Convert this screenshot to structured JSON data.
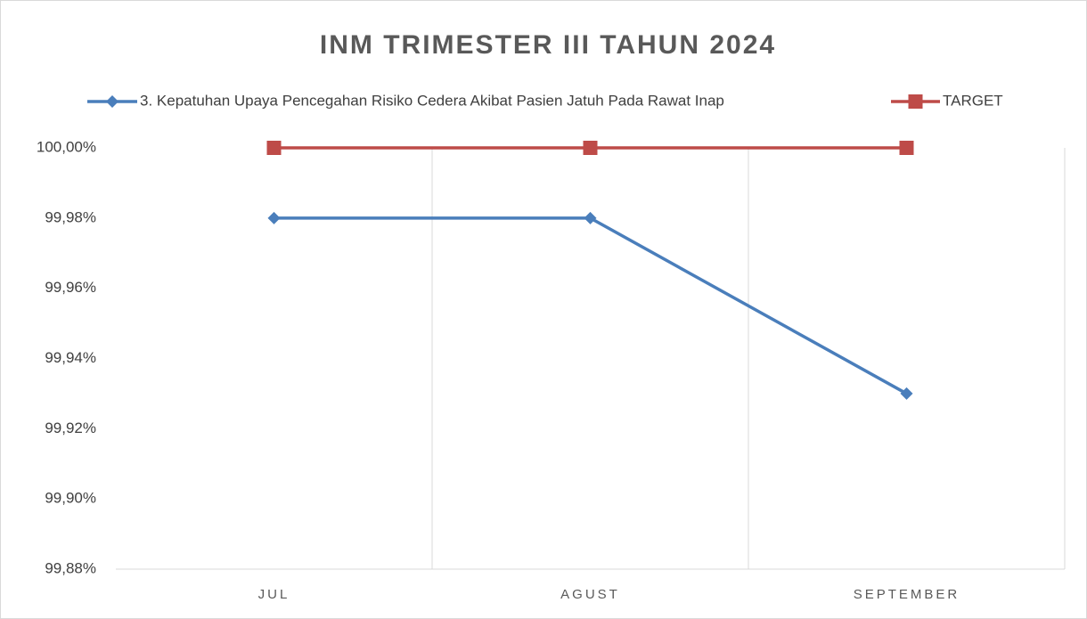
{
  "chart_data": {
    "type": "line",
    "title": "INM TRIMESTER III TAHUN 2024",
    "categories": [
      "JUL",
      "AGUST",
      "SEPTEMBER"
    ],
    "series": [
      {
        "name": "3. Kepatuhan Upaya Pencegahan Risiko Cedera Akibat Pasien Jatuh Pada Rawat Inap",
        "color": "#4a7ebb",
        "marker": "diamond",
        "values": [
          99.98,
          99.98,
          99.93
        ]
      },
      {
        "name": "TARGET",
        "color": "#be4b48",
        "marker": "square",
        "values": [
          100,
          100,
          100
        ]
      }
    ],
    "ylim": [
      99.88,
      100
    ],
    "yticks": [
      {
        "value": 99.88,
        "label": "99,88%"
      },
      {
        "value": 99.9,
        "label": "99,90%"
      },
      {
        "value": 99.92,
        "label": "99,92%"
      },
      {
        "value": 99.94,
        "label": "99,94%"
      },
      {
        "value": 99.96,
        "label": "99,96%"
      },
      {
        "value": 99.98,
        "label": "99,98%"
      },
      {
        "value": 100,
        "label": "100,00%"
      }
    ],
    "legend": "top"
  }
}
